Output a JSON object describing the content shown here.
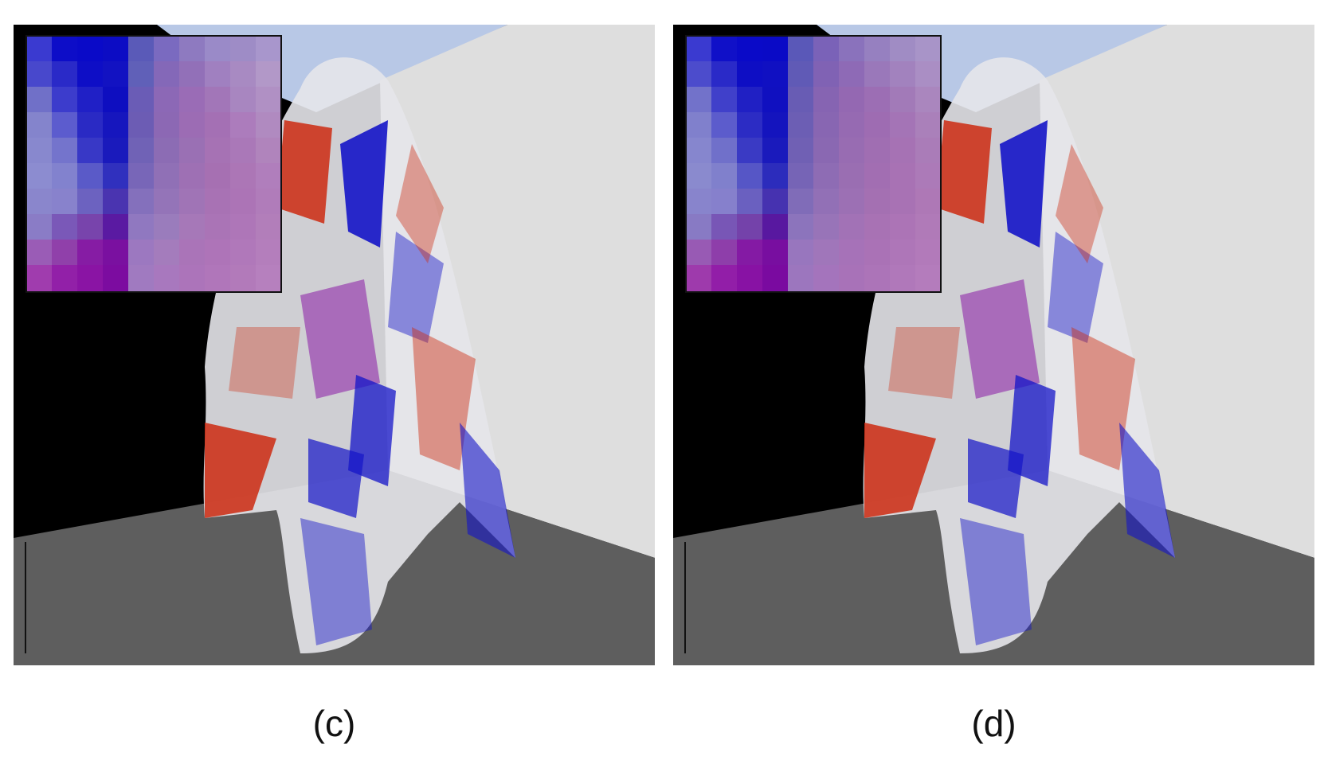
{
  "panels": [
    {
      "id": "c",
      "caption": "(c)",
      "zoom_inset": "noisy"
    },
    {
      "id": "d",
      "caption": "(d)",
      "zoom_inset": "smooth"
    }
  ],
  "colors": {
    "ceiling": "#b8c8e6",
    "back_wall_left": "#000000",
    "back_wall_right": "#dedede",
    "floor": "#5e5e5e",
    "cloth_white": "#e6e6ea",
    "cloth_red": "#cc2a10",
    "cloth_blue": "#1414c8",
    "cloth_purple": "#8a1aa6"
  }
}
